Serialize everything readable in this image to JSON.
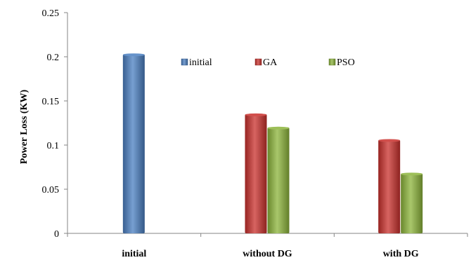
{
  "chart_data": {
    "type": "bar",
    "categories": [
      "initial",
      "without DG",
      "with DG"
    ],
    "series": [
      {
        "name": "initial",
        "values": [
          0.203,
          null,
          null
        ],
        "color": "#4a7fc1"
      },
      {
        "name": "GA",
        "values": [
          null,
          0.135,
          0.106
        ],
        "color": "#c9302c"
      },
      {
        "name": "PSO",
        "values": [
          null,
          0.12,
          0.068
        ],
        "color": "#8cb43a"
      }
    ],
    "title": "",
    "xlabel": "",
    "ylabel": "Power Loss (KW)",
    "ylim": [
      0,
      0.25
    ],
    "yticks": [
      0,
      0.05,
      0.1,
      0.15,
      0.2,
      0.25
    ],
    "ytick_labels": [
      "0",
      "0.05",
      "0.1",
      "0.15",
      "0.2",
      "0.25"
    ],
    "grid": false,
    "legend_position": "top-center, horizontal, inside plot"
  }
}
